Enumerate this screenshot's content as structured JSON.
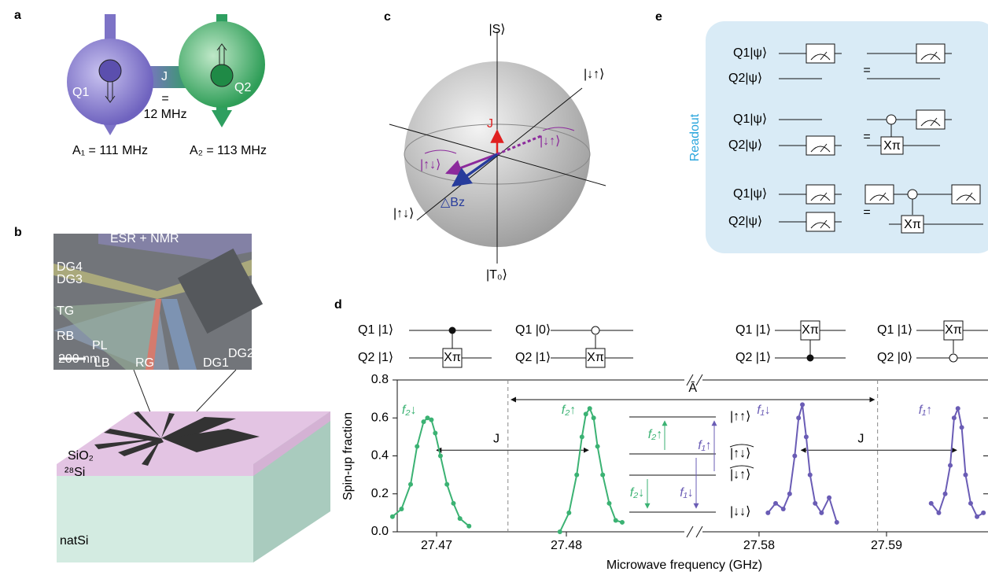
{
  "panels": {
    "a": {
      "letter": "a",
      "q1": "Q1",
      "q2": "Q2",
      "j": "J",
      "equals": "=",
      "j_value": "12 MHz",
      "a1": "A₁ = 111 MHz",
      "a2": "A₂ = 113 MHz"
    },
    "b": {
      "letter": "b",
      "labels": [
        "ESR + NMR",
        "DG4",
        "DG3",
        "TG",
        "RB",
        "PL",
        "200 nm",
        "LB",
        "RG",
        "DG1",
        "DG2"
      ],
      "layers": [
        "SiO₂",
        "²⁸Si",
        "natSi"
      ]
    },
    "c": {
      "letter": "c",
      "s": "|S⟩",
      "down_up": "|↓↑⟩",
      "j": "J",
      "tilde_down_up": "|↓↑⟩",
      "tilde_up_down": "|↑↓⟩",
      "dbz": "△Bz",
      "up_down": "|↑↓⟩",
      "t0": "|T₀⟩"
    },
    "d": {
      "letter": "d",
      "circuits": [
        {
          "q1": "Q1 |1⟩",
          "q2": "Q2 |1⟩",
          "gate": "Xπ"
        },
        {
          "q1": "Q1 |0⟩",
          "q2": "Q2 |1⟩",
          "gate": "Xπ"
        },
        {
          "q1": "Q1 |1⟩",
          "q2": "Q2 |1⟩",
          "gate": "Xπ"
        },
        {
          "q1": "Q1 |1⟩",
          "q2": "Q2 |0⟩",
          "gate": "Xπ"
        }
      ],
      "xlabel": "Microwave frequency (GHz)",
      "ylabel": "Spin-up fraction",
      "ylim": [
        0,
        0.8
      ],
      "yticks": [
        {
          "value": 0,
          "label": "0.0"
        },
        0.2,
        0.4,
        0.6,
        0.8
      ],
      "segments": [
        {
          "xlim": [
            27.46697,
            27.48909
          ],
          "xticks": [
            27.47,
            27.48
          ]
        },
        {
          "xlim": [
            27.57556,
            27.59759
          ],
          "xticks": [
            27.58,
            27.59
          ]
        }
      ],
      "series": [
        {
          "name": "f₂↓",
          "color": "#3bb273",
          "segment": 0,
          "x": [
            27.4666,
            27.4673,
            27.468,
            27.4685,
            27.469,
            27.4693,
            27.4696,
            27.4699,
            27.4703,
            27.4708,
            27.4713,
            27.4718,
            27.4725
          ],
          "y": [
            0.08,
            0.12,
            0.25,
            0.45,
            0.58,
            0.6,
            0.59,
            0.52,
            0.4,
            0.25,
            0.15,
            0.07,
            0.03
          ]
        },
        {
          "name": "f₂↑",
          "color": "#3bb273",
          "segment": 0,
          "x": [
            27.4795,
            27.4802,
            27.4808,
            27.4812,
            27.4815,
            27.4818,
            27.4821,
            27.4824,
            27.4828,
            27.4833,
            27.4838,
            27.4843
          ],
          "y": [
            0.0,
            0.1,
            0.3,
            0.5,
            0.62,
            0.65,
            0.6,
            0.45,
            0.3,
            0.15,
            0.06,
            0.05
          ]
        },
        {
          "name": "f₁↓",
          "color": "#6a5cb5",
          "segment": 1,
          "x": [
            27.5807,
            27.5813,
            27.5819,
            27.5824,
            27.5828,
            27.5831,
            27.5834,
            27.5837,
            27.584,
            27.5844,
            27.5849,
            27.5855,
            27.5861
          ],
          "y": [
            0.1,
            0.15,
            0.12,
            0.2,
            0.4,
            0.6,
            0.67,
            0.5,
            0.3,
            0.15,
            0.1,
            0.18,
            0.05
          ]
        },
        {
          "name": "f₁↑",
          "color": "#6a5cb5",
          "segment": 1,
          "x": [
            27.5935,
            27.5941,
            27.5946,
            27.595,
            27.5953,
            27.5956,
            27.5959,
            27.5962,
            27.5966,
            27.5971,
            27.5976
          ],
          "y": [
            0.15,
            0.1,
            0.2,
            0.35,
            0.6,
            0.65,
            0.55,
            0.3,
            0.15,
            0.08,
            0.1
          ]
        }
      ],
      "a_label": "Ā",
      "a_range": [
        27.4755,
        27.5893
      ],
      "j_label": "J",
      "j_left": [
        27.47,
        27.4817
      ],
      "j_right": [
        27.5833,
        27.5955
      ],
      "j_y": 0.43,
      "levels": [
        "|↑↑⟩",
        "|↑↓⟩",
        "|↓↑⟩",
        "|↓↓⟩"
      ],
      "level_arrows": [
        "f₂↑",
        "f₁↑",
        "f₂↓",
        "f₁↓"
      ]
    },
    "e": {
      "letter": "e",
      "title": "Readout",
      "q1": "Q1|ψ⟩",
      "q2": "Q2|ψ⟩",
      "equals": "=",
      "gate": "Xπ"
    }
  }
}
